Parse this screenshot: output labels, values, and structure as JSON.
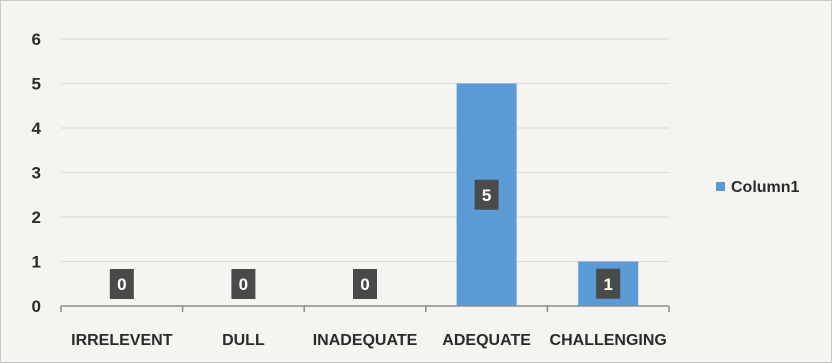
{
  "chart_data": {
    "type": "bar",
    "title": "",
    "xlabel": "",
    "ylabel": "",
    "categories": [
      "IRRELEVENT",
      "DULL",
      "INADEQUATE",
      "ADEQUATE",
      "CHALLENGING"
    ],
    "series": [
      {
        "name": "Column1",
        "values": [
          0,
          0,
          0,
          5,
          1
        ]
      }
    ],
    "ylim": [
      0,
      6
    ],
    "y_ticks": [
      "0",
      "1",
      "2",
      "3",
      "4",
      "5",
      "6"
    ],
    "data_labels": [
      "0",
      "0",
      "0",
      "5",
      "1"
    ],
    "grid": true,
    "legend_position": "right",
    "colors": {
      "bar": "#5b9bd5",
      "data_label_box": "#4a4a4a",
      "gridline": "#d9d9d9",
      "axis": "#8c8c8c"
    }
  }
}
